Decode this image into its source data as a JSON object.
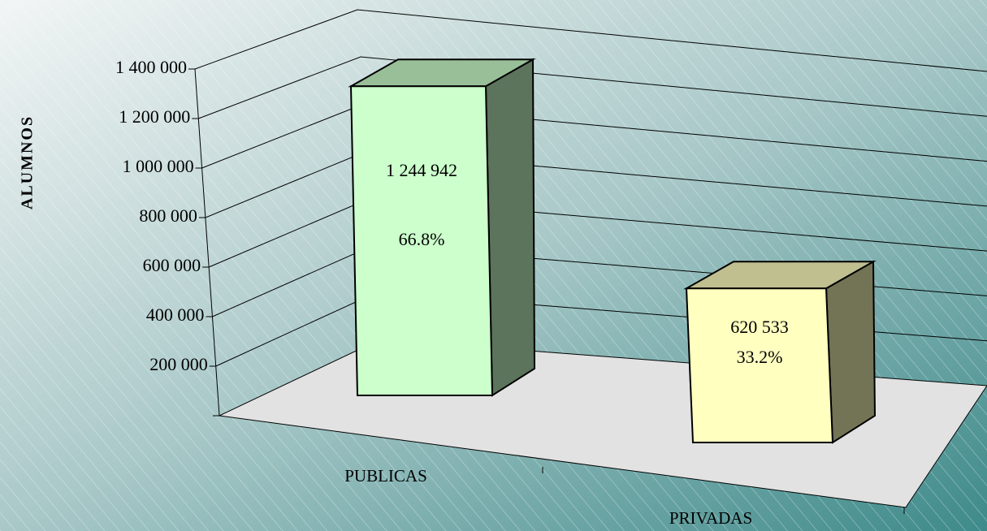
{
  "chart_data": {
    "type": "bar3d",
    "y_axis_label": "ALUMNOS",
    "categories": [
      "PUBLICAS",
      "PRIVADAS"
    ],
    "values": [
      1244942,
      620533
    ],
    "value_labels": [
      "1 244 942",
      "620 533"
    ],
    "percentages": [
      66.8,
      33.2
    ],
    "percentage_labels": [
      "66.8%",
      "33.2%"
    ],
    "colors": [
      "#ccffcc",
      "#ffffc0"
    ],
    "ylim": [
      0,
      1400000
    ],
    "yticks": [
      {
        "value": 200000,
        "label": "200 000"
      },
      {
        "value": 400000,
        "label": "400 000"
      },
      {
        "value": 600000,
        "label": "600 000"
      },
      {
        "value": 800000,
        "label": "800 000"
      },
      {
        "value": 1000000,
        "label": "1 000 000"
      },
      {
        "value": 1200000,
        "label": "1 200 000"
      },
      {
        "value": 1400000,
        "label": "1 400 000"
      }
    ],
    "grid": true
  }
}
